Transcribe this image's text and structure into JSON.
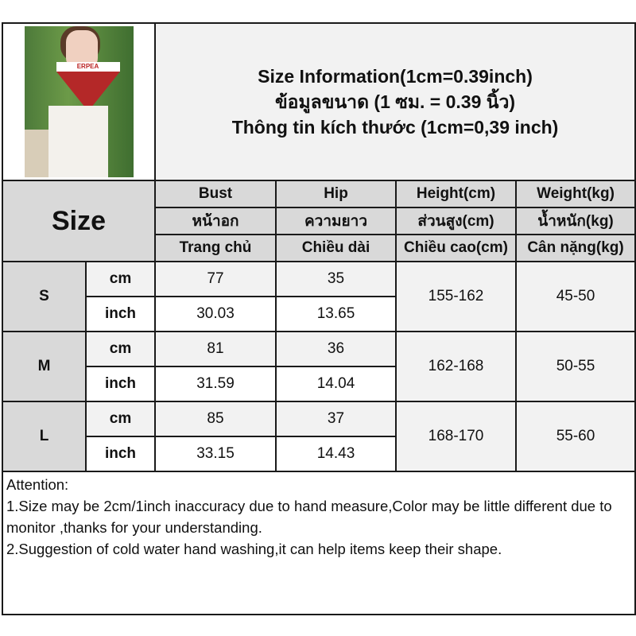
{
  "title": {
    "line1": "Size Information(1cm=0.39inch)",
    "line2": "ข้อมูลขนาด (1 ซม. = 0.39 นิ้ว)",
    "line3": "Thông tin kích thước (1cm=0,39 inch)"
  },
  "photo": {
    "shirt_text": "ERPEA"
  },
  "header": {
    "size_label": "Size",
    "columns": [
      {
        "en": "Bust",
        "th": "หน้าอก",
        "vi": "Trang chủ"
      },
      {
        "en": "Hip",
        "th": "ความยาว",
        "vi": "Chiều dài"
      },
      {
        "en": "Height(cm)",
        "th": "ส่วนสูง(cm)",
        "vi": "Chiều cao(cm)"
      },
      {
        "en": "Weight(kg)",
        "th": "น้ำหนัก(kg)",
        "vi": "Cân nặng(kg)"
      }
    ]
  },
  "rows": [
    {
      "size": "S",
      "cm_label": "cm",
      "inch_label": "inch",
      "bust_cm": "77",
      "hip_cm": "35",
      "bust_inch": "30.03",
      "hip_inch": "13.65",
      "height": "155-162",
      "weight": "45-50"
    },
    {
      "size": "M",
      "cm_label": "cm",
      "inch_label": "inch",
      "bust_cm": "81",
      "hip_cm": "36",
      "bust_inch": "31.59",
      "hip_inch": "14.04",
      "height": "162-168",
      "weight": "50-55"
    },
    {
      "size": "L",
      "cm_label": "cm",
      "inch_label": "inch",
      "bust_cm": "85",
      "hip_cm": "37",
      "bust_inch": "33.15",
      "hip_inch": "14.43",
      "height": "168-170",
      "weight": "55-60"
    }
  ],
  "notes": {
    "heading": "Attention:",
    "line1": "1.Size may be 2cm/1inch inaccuracy due to hand measure,Color may be little different due to monitor ,thanks for your understanding.",
    "line2": "2.Suggestion of cold water hand washing,it can help items keep their shape."
  },
  "colors": {
    "header_bg": "#d9d9d9",
    "alt_row_bg": "#f2f2f2",
    "border": "#1a1a1a"
  }
}
